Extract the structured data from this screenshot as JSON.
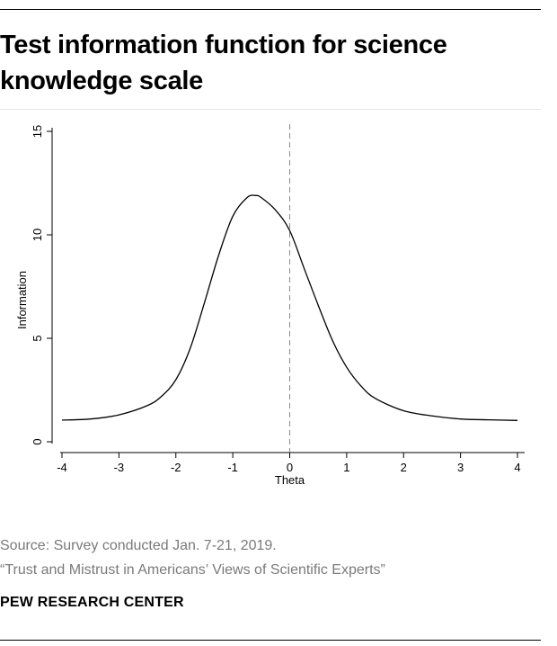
{
  "header": {
    "title": "Test information function for science knowledge scale"
  },
  "footer": {
    "source": "Source: Survey conducted Jan. 7-21, 2019.",
    "report": "“Trust and Mistrust in Americans’ Views of Scientific Experts”",
    "org": "PEW RESEARCH CENTER"
  },
  "chart_data": {
    "type": "line",
    "xlabel": "Theta",
    "ylabel": "Information",
    "xlim": [
      -4,
      4
    ],
    "ylim": [
      0,
      15
    ],
    "x_ticks": [
      "-4",
      "-3",
      "-2",
      "-1",
      "0",
      "1",
      "2",
      "3",
      "4"
    ],
    "y_ticks": [
      "0",
      "5",
      "10",
      "15"
    ],
    "reference_line_x": 0,
    "grid": false,
    "legend": "none",
    "line_color": "#000000",
    "reference_line_color": "#8a8a8a",
    "series": [
      {
        "x": [
          -4.0,
          -3.5,
          -3.0,
          -2.5,
          -2.25,
          -2.0,
          -1.75,
          -1.5,
          -1.25,
          -1.0,
          -0.75,
          -0.6,
          -0.5,
          -0.25,
          0.0,
          0.25,
          0.5,
          0.75,
          1.0,
          1.25,
          1.5,
          2.0,
          2.5,
          3.0,
          3.5,
          4.0
        ],
        "y": [
          1.05,
          1.1,
          1.3,
          1.75,
          2.2,
          3.0,
          4.5,
          6.7,
          9.0,
          10.9,
          11.8,
          11.9,
          11.8,
          11.2,
          10.2,
          8.4,
          6.6,
          4.9,
          3.6,
          2.7,
          2.1,
          1.5,
          1.25,
          1.1,
          1.06,
          1.03
        ]
      }
    ]
  }
}
